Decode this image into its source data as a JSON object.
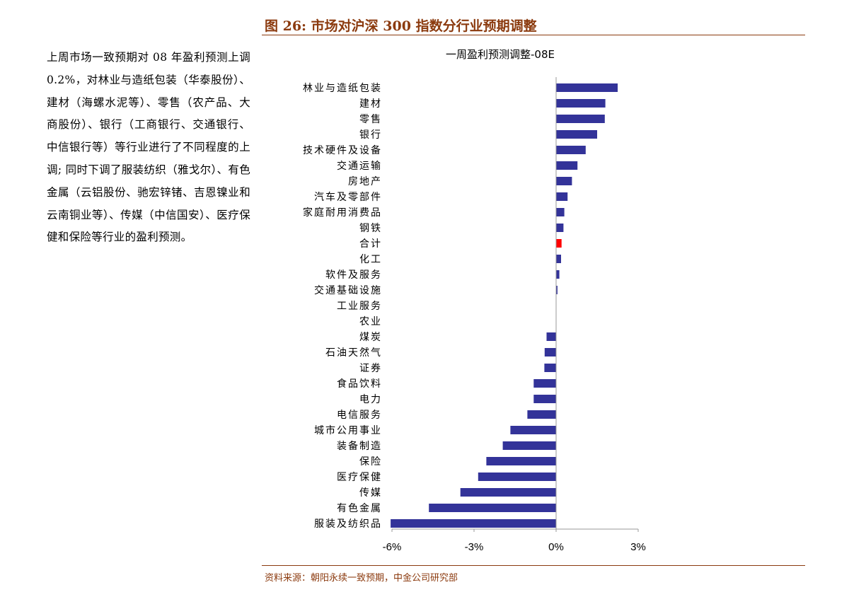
{
  "figure_title": "图 26:  市场对沪深 300 指数分行业预期调整",
  "commentary": "上周市场一致预期对 08 年盈利预测上调 0.2%，对林业与造纸包装（华泰股份）、建材（海螺水泥等）、零售（农产品、大商股份）、银行（工商银行、交通银行、中信银行等）等行业进行了不同程度的上调; 同时下调了服装纺织（雅戈尔）、有色金属（云铝股份、驰宏锌锗、吉恩镍业和云南铜业等）、传媒（中信国安）、医疗保健和保险等行业的盈利预测。",
  "source": "资料来源：朝阳永续一致预期，中金公司研究部",
  "colors": {
    "bar": "#333399",
    "highlight": "#ff0000",
    "accent": "#8b3a0e"
  },
  "chart_data": {
    "type": "bar",
    "orientation": "horizontal",
    "title": "一周盈利预测调整-08E",
    "xlabel": "",
    "ylabel": "",
    "xlim": [
      -6,
      3
    ],
    "xticks": [
      -6,
      -3,
      0,
      3
    ],
    "xtick_labels": [
      "-6%",
      "-3%",
      "0%",
      "3%"
    ],
    "value_unit": "%",
    "categories": [
      "林业与造纸包装",
      "建材",
      "零售",
      "银行",
      "技术硬件及设备",
      "交通运输",
      "房地产",
      "汽车及零部件",
      "家庭耐用消费品",
      "钢铁",
      "合计",
      "化工",
      "软件及服务",
      "交通基础设施",
      "工业服务",
      "农业",
      "煤炭",
      "石油天然气",
      "证券",
      "食品饮料",
      "电力",
      "电信服务",
      "城市公用事业",
      "装备制造",
      "保险",
      "医疗保健",
      "传媒",
      "有色金属",
      "服装及纺织品"
    ],
    "values": [
      2.25,
      1.8,
      1.78,
      1.5,
      1.08,
      0.78,
      0.58,
      0.42,
      0.3,
      0.27,
      0.2,
      0.18,
      0.12,
      0.05,
      0.0,
      0.0,
      -0.35,
      -0.42,
      -0.43,
      -0.82,
      -0.82,
      -1.05,
      -1.67,
      -1.95,
      -2.55,
      -2.85,
      -3.5,
      -4.65,
      -6.05
    ],
    "highlight_category": "合计"
  }
}
